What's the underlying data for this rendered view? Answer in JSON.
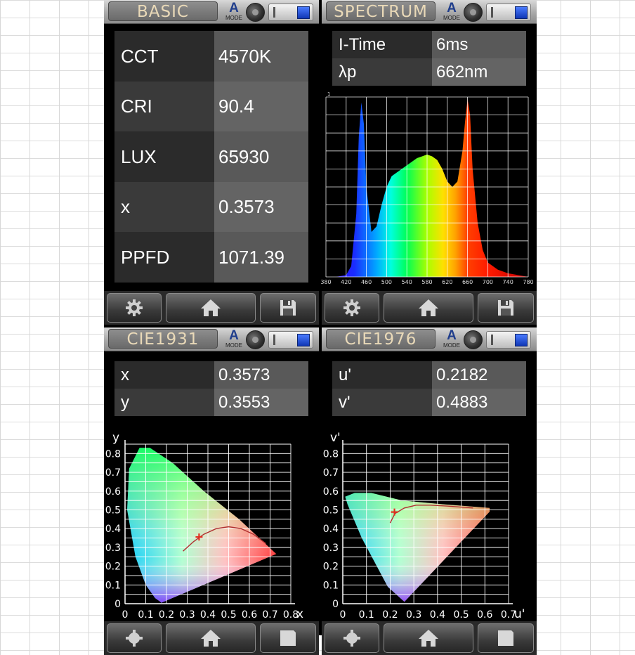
{
  "panels": {
    "basic": {
      "title": "BASIC",
      "mode": {
        "icon_letter": "A",
        "label": "MODE"
      },
      "rows": [
        {
          "label": "CCT",
          "value": "4570K"
        },
        {
          "label": "CRI",
          "value": "90.4"
        },
        {
          "label": "LUX",
          "value": "65930"
        },
        {
          "label": "x",
          "value": "0.3573"
        },
        {
          "label": "PPFD",
          "value": "1071.39"
        }
      ],
      "footer_icons": [
        "gear-icon",
        "home-icon",
        "save-icon"
      ]
    },
    "spectrum": {
      "title": "SPECTRUM",
      "mode": {
        "icon_letter": "A",
        "label": "MODE"
      },
      "rows": [
        {
          "label": "I-Time",
          "value": "6ms"
        },
        {
          "label": "λp",
          "value": "662nm"
        }
      ],
      "footer_icons": [
        "gear-icon",
        "home-icon",
        "save-icon"
      ]
    },
    "cie1931": {
      "title": "CIE1931",
      "mode": {
        "icon_letter": "A",
        "label": "MODE"
      },
      "rows": [
        {
          "label": "x",
          "value": "0.3573"
        },
        {
          "label": "y",
          "value": "0.3553"
        }
      ],
      "footer_icons": [
        "gear-icon",
        "home-icon",
        "save-icon"
      ]
    },
    "cie1976": {
      "title": "CIE1976",
      "mode": {
        "icon_letter": "A",
        "label": "MODE"
      },
      "rows": [
        {
          "label": "u'",
          "value": "0.2182"
        },
        {
          "label": "v'",
          "value": "0.4883"
        }
      ],
      "footer_icons": [
        "gear-icon",
        "home-icon",
        "save-icon"
      ]
    }
  },
  "chart_data": [
    {
      "id": "spectrum",
      "type": "area",
      "title": "",
      "xlabel": "",
      "ylabel": "",
      "y_tick_label": "1",
      "xlim": [
        380,
        780
      ],
      "ylim": [
        0,
        1
      ],
      "x_ticks": [
        380,
        420,
        460,
        500,
        540,
        580,
        620,
        660,
        700,
        740,
        780
      ],
      "x": [
        380,
        400,
        420,
        430,
        440,
        445,
        450,
        455,
        460,
        470,
        480,
        490,
        500,
        510,
        520,
        540,
        560,
        570,
        580,
        590,
        600,
        610,
        620,
        630,
        640,
        650,
        655,
        660,
        665,
        670,
        680,
        690,
        700,
        720,
        740,
        760,
        780
      ],
      "values": [
        0.0,
        0.0,
        0.01,
        0.06,
        0.35,
        0.78,
        0.97,
        0.85,
        0.5,
        0.25,
        0.28,
        0.4,
        0.5,
        0.56,
        0.58,
        0.62,
        0.66,
        0.67,
        0.68,
        0.67,
        0.65,
        0.6,
        0.53,
        0.5,
        0.53,
        0.7,
        0.86,
        0.99,
        0.9,
        0.6,
        0.3,
        0.15,
        0.08,
        0.04,
        0.02,
        0.01,
        0.0
      ],
      "fill": "visible-spectrum-gradient",
      "grid": true
    },
    {
      "id": "cie1931",
      "type": "scatter",
      "title": "",
      "xlabel": "x",
      "ylabel": "y",
      "xlim": [
        0,
        0.8
      ],
      "ylim": [
        0,
        0.85
      ],
      "x_ticks": [
        0,
        0.1,
        0.2,
        0.3,
        0.4,
        0.5,
        0.6,
        0.7,
        0.8
      ],
      "y_ticks": [
        0,
        0.1,
        0.2,
        0.3,
        0.4,
        0.5,
        0.6,
        0.7,
        0.8
      ],
      "gamut": [
        [
          0.175,
          0.005
        ],
        [
          0.17,
          0.01
        ],
        [
          0.145,
          0.03
        ],
        [
          0.1,
          0.1
        ],
        [
          0.05,
          0.25
        ],
        [
          0.01,
          0.5
        ],
        [
          0.02,
          0.72
        ],
        [
          0.07,
          0.83
        ],
        [
          0.12,
          0.83
        ],
        [
          0.23,
          0.75
        ],
        [
          0.38,
          0.6
        ],
        [
          0.55,
          0.45
        ],
        [
          0.73,
          0.265
        ],
        [
          0.175,
          0.005
        ]
      ],
      "locus": [
        [
          0.28,
          0.28
        ],
        [
          0.33,
          0.33
        ],
        [
          0.38,
          0.37
        ],
        [
          0.44,
          0.4
        ],
        [
          0.5,
          0.41
        ],
        [
          0.56,
          0.4
        ],
        [
          0.62,
          0.37
        ],
        [
          0.68,
          0.32
        ]
      ],
      "point": {
        "x": 0.3573,
        "y": 0.3553,
        "color": "#e03020"
      },
      "grid": true
    },
    {
      "id": "cie1976",
      "type": "scatter",
      "title": "",
      "xlabel": "u'",
      "ylabel": "v'",
      "xlim": [
        0,
        0.7
      ],
      "ylim": [
        0,
        0.85
      ],
      "x_ticks": [
        0,
        0.1,
        0.2,
        0.3,
        0.4,
        0.5,
        0.6,
        0.7
      ],
      "y_ticks": [
        0,
        0.1,
        0.2,
        0.3,
        0.4,
        0.5,
        0.6,
        0.7,
        0.8
      ],
      "gamut": [
        [
          0.26,
          0.01
        ],
        [
          0.19,
          0.09
        ],
        [
          0.08,
          0.35
        ],
        [
          0.02,
          0.53
        ],
        [
          0.01,
          0.57
        ],
        [
          0.05,
          0.59
        ],
        [
          0.12,
          0.59
        ],
        [
          0.25,
          0.55
        ],
        [
          0.42,
          0.53
        ],
        [
          0.62,
          0.51
        ],
        [
          0.62,
          0.49
        ],
        [
          0.26,
          0.01
        ]
      ],
      "locus": [
        [
          0.2,
          0.43
        ],
        [
          0.22,
          0.48
        ],
        [
          0.26,
          0.51
        ],
        [
          0.31,
          0.525
        ],
        [
          0.37,
          0.525
        ],
        [
          0.44,
          0.52
        ],
        [
          0.55,
          0.51
        ]
      ],
      "point": {
        "x": 0.2182,
        "y": 0.4883,
        "color": "#e03020"
      },
      "grid": true
    }
  ]
}
